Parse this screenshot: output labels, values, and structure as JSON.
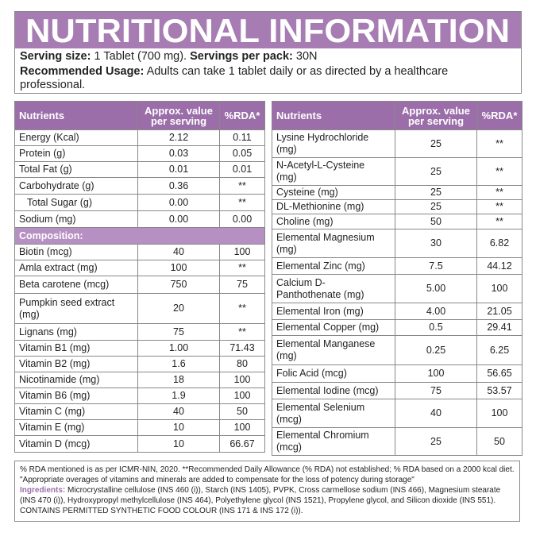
{
  "header": {
    "title": "NUTRITIONAL INFORMATION",
    "serving_size_label": "Serving size:",
    "serving_size": "1 Tablet (700 mg).",
    "servings_label": "Servings per pack:",
    "servings": "30N",
    "usage_label": "Recommended Usage:",
    "usage": "Adults can take 1 tablet daily or as directed by a healthcare professional."
  },
  "left_table": {
    "headers": [
      "Nutrients",
      "Approx. value per serving",
      "%RDA*"
    ],
    "rows": [
      [
        "Energy (Kcal)",
        "2.12",
        "0.11"
      ],
      [
        "Protein (g)",
        "0.03",
        "0.05"
      ],
      [
        "Total Fat (g)",
        "0.01",
        "0.01"
      ],
      [
        "Carbohydrate (g)",
        "0.36",
        "**"
      ],
      [
        "Total Sugar (g)",
        "0.00",
        "**"
      ],
      [
        "Sodium (mg)",
        "0.00",
        "0.00"
      ]
    ],
    "section": "Composition:",
    "section_rows": [
      [
        "Biotin (mcg)",
        "40",
        "100"
      ],
      [
        "Amla extract (mg)",
        "100",
        "**"
      ],
      [
        "Beta carotene (mcg)",
        "750",
        "75"
      ],
      [
        "Pumpkin seed extract (mg)",
        "20",
        "**"
      ],
      [
        "Lignans (mg)",
        "75",
        "**"
      ],
      [
        "Vitamin B1 (mg)",
        "1.00",
        "71.43"
      ],
      [
        "Vitamin B2 (mg)",
        "1.6",
        "80"
      ],
      [
        "Nicotinamide (mg)",
        "18",
        "100"
      ],
      [
        "Vitamin B6 (mg)",
        "1.9",
        "100"
      ],
      [
        "Vitamin C (mg)",
        "40",
        "50"
      ],
      [
        "Vitamin E (mg)",
        "10",
        "100"
      ],
      [
        "Vitamin D (mcg)",
        "10",
        "66.67"
      ]
    ]
  },
  "right_table": {
    "headers": [
      "Nutrients",
      "Approx. value per serving",
      "%RDA*"
    ],
    "rows": [
      [
        "Lysine Hydrochloride (mg)",
        "25",
        "**"
      ],
      [
        "N-Acetyl-L-Cysteine (mg)",
        "25",
        "**"
      ],
      [
        "Cysteine (mg)",
        "25",
        "**"
      ],
      [
        "DL-Methionine (mg)",
        "25",
        "**"
      ],
      [
        "Choline (mg)",
        "50",
        "**"
      ],
      [
        "Elemental Magnesium (mg)",
        "30",
        "6.82"
      ],
      [
        "Elemental Zinc (mg)",
        "7.5",
        "44.12"
      ],
      [
        "Calcium D-Panthothenate (mg)",
        "5.00",
        "100"
      ],
      [
        "Elemental Iron (mg)",
        "4.00",
        "21.05"
      ],
      [
        "Elemental Copper (mg)",
        "0.5",
        "29.41"
      ],
      [
        "Elemental Manganese (mg)",
        "0.25",
        "6.25"
      ],
      [
        "Folic Acid (mcg)",
        "100",
        "56.65"
      ],
      [
        "Elemental Iodine (mcg)",
        "75",
        "53.57"
      ],
      [
        "Elemental Selenium (mcg)",
        "40",
        "100"
      ],
      [
        "Elemental Chromium (mcg)",
        "25",
        "50"
      ]
    ]
  },
  "footer": {
    "note": "% RDA mentioned is as per ICMR-NIN, 2020. **Recommended Daily Allowance (% RDA) not established; % RDA based on a 2000 kcal diet. \"Appropriate overages of vitamins and minerals are added to compensate for the loss of potency during storage\"",
    "ingredients_label": "Ingredients:",
    "ingredients": "Microcrystalline cellulose (INS 460 (i)), Starch (INS 1405), PVPK, Cross carmellose sodium (INS 466), Magnesium stearate (INS 470 (i)), Hydroxypropyl methylcellulose (INS 464), Polyethylene glycol (INS 1521), Propylene glycol, and Silicon dioxide (INS 551). CONTAINS PERMITTED SYNTHETIC FOOD COLOUR (INS 171 & INS 172 (i))."
  }
}
